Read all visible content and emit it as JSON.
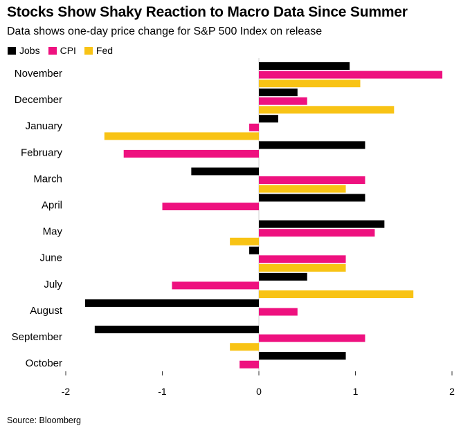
{
  "title": "Stocks Show Shaky Reaction to Macro Data Since Summer",
  "subtitle": "Data shows one-day price change for S&P 500 Index on release",
  "source": "Source: Bloomberg",
  "colors": {
    "jobs": "#000000",
    "cpi": "#ee117f",
    "fed": "#f8c315"
  },
  "chart_data": {
    "type": "bar",
    "orientation": "horizontal",
    "title": "Stocks Show Shaky Reaction to Macro Data Since Summer",
    "subtitle": "Data shows one-day price change for S&P 500 Index on release",
    "xlabel": "",
    "ylabel": "",
    "xlim": [
      -2,
      2
    ],
    "xticks": [
      -2,
      -1,
      0,
      1,
      2
    ],
    "xtick_labels": [
      "-2",
      "-1",
      "0",
      "1",
      "2"
    ],
    "legend_position": "top-left",
    "categories": [
      "November",
      "December",
      "January",
      "February",
      "March",
      "April",
      "May",
      "June",
      "July",
      "August",
      "September",
      "October"
    ],
    "series": [
      {
        "name": "Jobs",
        "key": "jobs",
        "values": [
          0.94,
          0.4,
          0.2,
          1.1,
          -0.7,
          1.1,
          1.3,
          -0.1,
          0.5,
          -1.8,
          -1.7,
          0.9
        ]
      },
      {
        "name": "CPI",
        "key": "cpi",
        "values": [
          1.9,
          0.5,
          -0.1,
          -1.4,
          1.1,
          -1.0,
          1.2,
          0.9,
          -0.9,
          0.4,
          1.1,
          -0.2
        ]
      },
      {
        "name": "Fed",
        "key": "fed",
        "values": [
          1.05,
          1.4,
          -1.6,
          null,
          0.9,
          null,
          -0.3,
          0.9,
          1.6,
          null,
          -0.3,
          null
        ]
      }
    ]
  }
}
